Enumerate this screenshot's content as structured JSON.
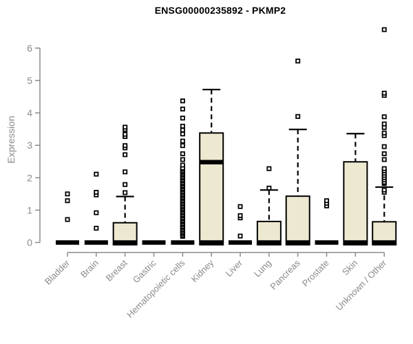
{
  "header": {
    "title": "ENSG00000235892 - PKMP2"
  },
  "chart_data": {
    "type": "boxplot",
    "title": "ENSG00000235892 - PKMP2",
    "xlabel": "",
    "ylabel": "Expression",
    "ylim": [
      0,
      6.8
    ],
    "yticks": [
      0,
      1,
      2,
      3,
      4,
      5,
      6
    ],
    "grid": false,
    "legend": "none",
    "colors": {
      "box_fill": "#ede8d0",
      "box_stroke": "#000000",
      "median": "#000000",
      "whisker": "#000000",
      "outlier": "#000000",
      "axis": "#8a8a8a",
      "tick_label": "#8a8a8a",
      "title": "#000000"
    },
    "categories": [
      "Bladder",
      "Brain",
      "Breast",
      "Gastric",
      "Hematopoietic cells",
      "Kidney",
      "Liver",
      "Lung",
      "Pancreas",
      "Prostate",
      "Skin",
      "Unknown / Other"
    ],
    "series": [
      {
        "name": "Bladder",
        "q1": 0,
        "median": 0,
        "q3": 0,
        "whisker_low": 0,
        "whisker_high": 0,
        "outliers": [
          0.71,
          1.29,
          1.5
        ]
      },
      {
        "name": "Brain",
        "q1": 0,
        "median": 0,
        "q3": 0,
        "whisker_low": 0,
        "whisker_high": 0,
        "outliers": [
          0.44,
          0.92,
          1.47,
          1.55,
          2.11
        ]
      },
      {
        "name": "Breast",
        "q1": 0,
        "median": 0,
        "q3": 0.61,
        "whisker_low": 0,
        "whisker_high": 1.42,
        "outliers": [
          1.54,
          1.79,
          2.18,
          2.71,
          2.92,
          2.99,
          3.27,
          3.34,
          3.49,
          3.56
        ]
      },
      {
        "name": "Gastric",
        "q1": 0,
        "median": 0,
        "q3": 0,
        "whisker_low": 0,
        "whisker_high": 0,
        "outliers": []
      },
      {
        "name": "Hematopoietic cells",
        "q1": 0,
        "median": 0,
        "q3": 0,
        "whisker_low": 0,
        "whisker_high": 0,
        "outliers": [
          0.19,
          0.23,
          0.28,
          0.32,
          0.37,
          0.41,
          0.46,
          0.5,
          0.55,
          0.59,
          0.64,
          0.68,
          0.73,
          0.77,
          0.82,
          0.86,
          0.91,
          0.95,
          1.0,
          1.04,
          1.09,
          1.13,
          1.18,
          1.22,
          1.27,
          1.31,
          1.36,
          1.4,
          1.45,
          1.49,
          1.54,
          1.58,
          1.63,
          1.67,
          1.72,
          1.76,
          1.81,
          1.85,
          1.9,
          1.94,
          1.99,
          2.03,
          2.08,
          2.12,
          2.17,
          2.21,
          2.26,
          2.3,
          2.39,
          2.56,
          2.74,
          2.99,
          3.13,
          3.35,
          3.47,
          3.59,
          3.84,
          4.12,
          4.37
        ]
      },
      {
        "name": "Kidney",
        "q1": 0,
        "median": 2.48,
        "q3": 3.38,
        "whisker_low": 0,
        "whisker_high": 4.72,
        "outliers": []
      },
      {
        "name": "Liver",
        "q1": 0,
        "median": 0,
        "q3": 0,
        "whisker_low": 0,
        "whisker_high": 0,
        "outliers": [
          0.2,
          0.76,
          0.83,
          1.11
        ]
      },
      {
        "name": "Lung",
        "q1": 0,
        "median": 0,
        "q3": 0.65,
        "whisker_low": 0,
        "whisker_high": 1.62,
        "outliers": [
          1.68,
          2.28
        ]
      },
      {
        "name": "Pancreas",
        "q1": 0,
        "median": 0,
        "q3": 1.43,
        "whisker_low": 0,
        "whisker_high": 3.49,
        "outliers": [
          3.89,
          5.6
        ]
      },
      {
        "name": "Prostate",
        "q1": 0,
        "median": 0,
        "q3": 0,
        "whisker_low": 0,
        "whisker_high": 0,
        "outliers": [
          1.13,
          1.21,
          1.29
        ]
      },
      {
        "name": "Skin",
        "q1": 0,
        "median": 0,
        "q3": 2.49,
        "whisker_low": 0,
        "whisker_high": 3.36,
        "outliers": []
      },
      {
        "name": "Unknown / Other",
        "q1": 0,
        "median": 0,
        "q3": 0.64,
        "whisker_low": 0,
        "whisker_high": 1.71,
        "outliers": [
          1.55,
          1.62,
          1.82,
          1.86,
          1.93,
          2.0,
          2.07,
          2.14,
          2.21,
          2.28,
          2.56,
          2.74,
          2.96,
          3.3,
          3.38,
          3.55,
          3.66,
          3.88,
          4.54,
          4.61,
          6.57
        ]
      }
    ]
  }
}
